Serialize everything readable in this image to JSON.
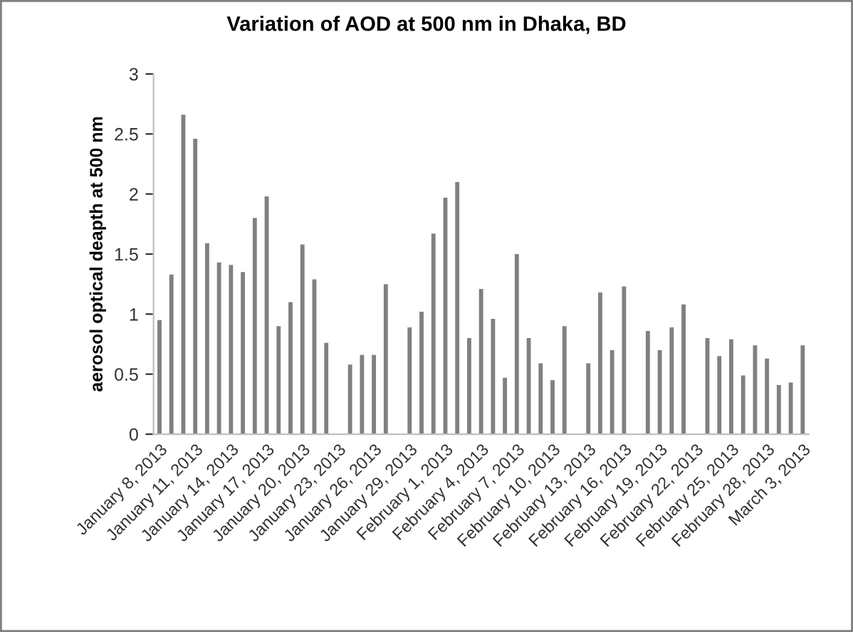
{
  "chart_data": {
    "type": "bar",
    "title": "Variation of AOD at 500 nm in Dhaka, BD",
    "ylabel": "aerosol optical deapth at 500 nm",
    "color": "#808080",
    "x": [
      "2013-01-08",
      "2013-01-09",
      "2013-01-10",
      "2013-01-11",
      "2013-01-12",
      "2013-01-13",
      "2013-01-14",
      "2013-01-15",
      "2013-01-16",
      "2013-01-17",
      "2013-01-18",
      "2013-01-19",
      "2013-01-20",
      "2013-01-21",
      "2013-01-22",
      "2013-01-24",
      "2013-01-25",
      "2013-01-26",
      "2013-01-27",
      "2013-01-29",
      "2013-01-30",
      "2013-01-31",
      "2013-02-01",
      "2013-02-02",
      "2013-02-03",
      "2013-02-04",
      "2013-02-05",
      "2013-02-06",
      "2013-02-07",
      "2013-02-08",
      "2013-02-09",
      "2013-02-10",
      "2013-02-11",
      "2013-02-13",
      "2013-02-14",
      "2013-02-15",
      "2013-02-16",
      "2013-02-18",
      "2013-02-19",
      "2013-02-20",
      "2013-02-21",
      "2013-02-23",
      "2013-02-24",
      "2013-02-25",
      "2013-02-26",
      "2013-02-27",
      "2013-02-28",
      "2013-03-01",
      "2013-03-02",
      "2013-03-03"
    ],
    "values": [
      0.95,
      1.33,
      2.66,
      2.46,
      1.59,
      1.43,
      1.41,
      1.35,
      1.8,
      1.98,
      0.9,
      1.1,
      1.58,
      1.29,
      0.76,
      0.58,
      0.66,
      0.66,
      1.25,
      0.89,
      1.02,
      1.67,
      1.97,
      2.1,
      0.8,
      1.21,
      0.96,
      0.47,
      1.5,
      0.8,
      0.59,
      0.45,
      0.9,
      0.59,
      1.18,
      0.7,
      1.23,
      0.86,
      0.7,
      0.89,
      1.08,
      0.8,
      0.65,
      0.79,
      0.49,
      0.74,
      0.63,
      0.41,
      0.43,
      0.74
    ],
    "xlim": [
      "2013-01-07T12:00",
      "2013-03-03T12:00"
    ],
    "xticks": [
      {
        "value": "2013-01-08",
        "label": "January 8, 2013"
      },
      {
        "value": "2013-01-11",
        "label": "January 11, 2013"
      },
      {
        "value": "2013-01-14",
        "label": "January 14, 2013"
      },
      {
        "value": "2013-01-17",
        "label": "January 17, 2013"
      },
      {
        "value": "2013-01-20",
        "label": "January 20, 2013"
      },
      {
        "value": "2013-01-23",
        "label": "January 23, 2013"
      },
      {
        "value": "2013-01-26",
        "label": "January 26, 2013"
      },
      {
        "value": "2013-01-29",
        "label": "January 29, 2013"
      },
      {
        "value": "2013-02-01",
        "label": "February 1, 2013"
      },
      {
        "value": "2013-02-04",
        "label": "February 4, 2013"
      },
      {
        "value": "2013-02-07",
        "label": "February 7, 2013"
      },
      {
        "value": "2013-02-10",
        "label": "February 10, 2013"
      },
      {
        "value": "2013-02-13",
        "label": "February 13, 2013"
      },
      {
        "value": "2013-02-16",
        "label": "February 16, 2013"
      },
      {
        "value": "2013-02-19",
        "label": "February 19, 2013"
      },
      {
        "value": "2013-02-22",
        "label": "February 22, 2013"
      },
      {
        "value": "2013-02-25",
        "label": "February 25, 2013"
      },
      {
        "value": "2013-02-28",
        "label": "February 28, 2013"
      },
      {
        "value": "2013-03-03",
        "label": "March 3, 2013"
      }
    ],
    "ylim": [
      0,
      3
    ],
    "yticks": [
      0,
      0.5,
      1,
      1.5,
      2,
      2.5,
      3
    ]
  }
}
